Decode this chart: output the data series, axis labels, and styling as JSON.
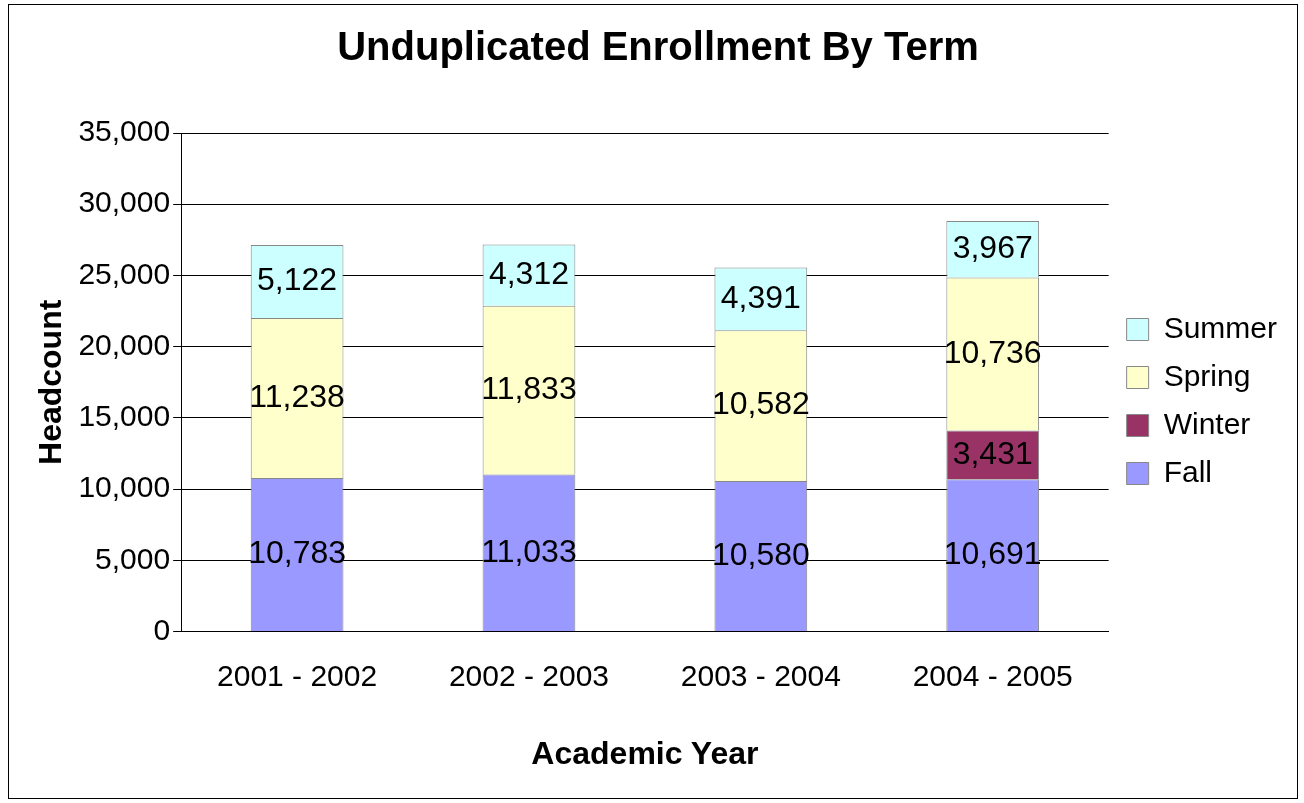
{
  "chart_data": {
    "type": "bar",
    "title": "Unduplicated Enrollment By Term",
    "xlabel": "Academic Year",
    "ylabel": "Headcount",
    "categories": [
      "2001 - 2002",
      "2002 - 2003",
      "2003 - 2004",
      "2004 - 2005"
    ],
    "series": [
      {
        "name": "Fall",
        "color": "#9999ff",
        "values": [
          10783,
          11033,
          10580,
          10691
        ],
        "value_labels": [
          "10,783",
          "11,033",
          "10,580",
          "10,691"
        ]
      },
      {
        "name": "Winter",
        "color": "#993366",
        "values": [
          null,
          null,
          null,
          3431
        ],
        "value_labels": [
          null,
          null,
          null,
          "3,431"
        ]
      },
      {
        "name": "Spring",
        "color": "#ffffcc",
        "values": [
          11238,
          11833,
          10582,
          10736
        ],
        "value_labels": [
          "11,238",
          "11,833",
          "10,582",
          "10,736"
        ]
      },
      {
        "name": "Summer",
        "color": "#ccffff",
        "values": [
          5122,
          4312,
          4391,
          3967
        ],
        "value_labels": [
          "5,122",
          "4,312",
          "4,391",
          "3,967"
        ]
      }
    ],
    "stacked": true,
    "ylim": [
      0,
      35000
    ],
    "yticks": [
      0,
      {
        "value": 5000,
        "label": "5,000"
      },
      {
        "value": 10000,
        "label": "10,000"
      },
      {
        "value": 15000,
        "label": "15,000"
      },
      {
        "value": 20000,
        "label": "20,000"
      },
      {
        "value": 25000,
        "label": "25,000"
      },
      {
        "value": 30000,
        "label": "30,000"
      },
      {
        "value": 35000,
        "label": "35,000"
      }
    ],
    "grid": "y",
    "legend": "right"
  }
}
